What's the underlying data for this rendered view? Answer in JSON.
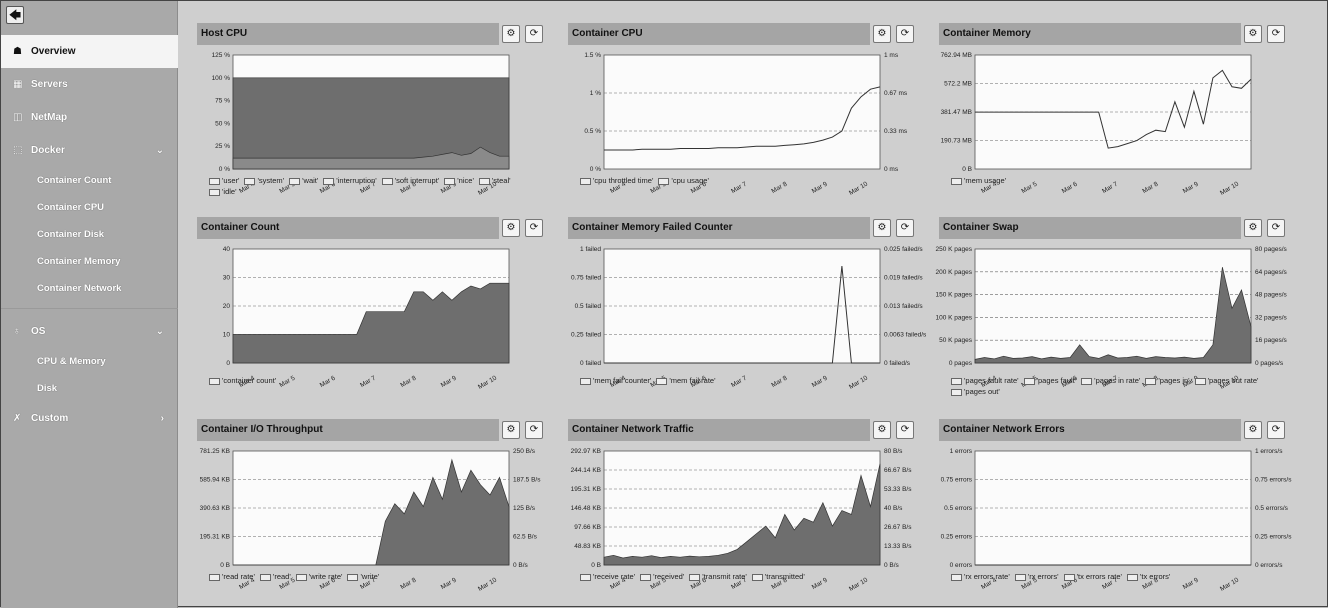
{
  "sidebar": {
    "back_icon": "arrow-left-icon",
    "items": [
      {
        "label": "Overview",
        "icon": "binoculars-icon",
        "glyph": "☗",
        "active": true,
        "chevron": ""
      },
      {
        "label": "Servers",
        "icon": "server-icon",
        "glyph": "▦",
        "active": false,
        "chevron": ""
      },
      {
        "label": "NetMap",
        "icon": "map-icon",
        "glyph": "◫",
        "active": false,
        "chevron": ""
      },
      {
        "label": "Docker",
        "icon": "docker-icon",
        "glyph": "⬚",
        "active": false,
        "chevron": "⌄"
      }
    ],
    "docker_sub": [
      "Container Count",
      "Container CPU",
      "Container Disk",
      "Container Memory",
      "Container Network"
    ],
    "os_item": {
      "label": "OS",
      "icon": "os-icon",
      "glyph": "♁",
      "chevron": "⌄"
    },
    "os_sub": [
      "CPU & Memory",
      "Disk"
    ],
    "custom_item": {
      "label": "Custom",
      "icon": "wrench-icon",
      "glyph": "✗",
      "chevron": "›"
    }
  },
  "panel_buttons": {
    "settings_glyph": "⚙",
    "refresh_glyph": "⟳"
  },
  "panels": [
    {
      "title": "Host CPU",
      "legend": [
        "'user'",
        "'system'",
        "'wait'",
        "'interruption'",
        "'soft interrupt'",
        "'nice'",
        "'steal'",
        "'idle'"
      ]
    },
    {
      "title": "Container CPU",
      "legend": [
        "'cpu throttled time'",
        "'cpu usage'"
      ]
    },
    {
      "title": "Container Memory",
      "legend": [
        "'mem usage'"
      ]
    },
    {
      "title": "Container Count",
      "legend": [
        "'container count'"
      ]
    },
    {
      "title": "Container Memory Failed Counter",
      "legend": [
        "'mem fail counter'",
        "'mem fail rate'"
      ]
    },
    {
      "title": "Container Swap",
      "legend": [
        "'pages fault rate'",
        "'pages fault'",
        "'pages in rate'",
        "'pages in'",
        "'pages out rate'",
        "'pages out'"
      ]
    },
    {
      "title": "Container I/O Throughput",
      "legend": [
        "'read rate'",
        "'read'",
        "'write rate'",
        "'write'"
      ]
    },
    {
      "title": "Container Network Traffic",
      "legend": [
        "'receive rate'",
        "'received'",
        "'transmit rate'",
        "'transmitted'"
      ]
    },
    {
      "title": "Container Network Errors",
      "legend": [
        "'rx errors rate'",
        "'rx errors'",
        "'tx errors rate'",
        "'tx errors'"
      ]
    }
  ],
  "chart_data": [
    {
      "type": "area",
      "x_ticks": [
        "Mar 4",
        "Mar 5",
        "Mar 6",
        "Mar 7",
        "Mar 8",
        "Mar 9",
        "Mar 10"
      ],
      "y_left_ticks": [
        "0 %",
        "25 %",
        "50 %",
        "75 %",
        "100 %",
        "125 %"
      ],
      "y_right_ticks": [],
      "ylim": [
        0,
        125
      ],
      "series": [
        {
          "values": [
            100,
            100,
            100,
            100,
            100,
            100,
            100,
            100,
            100,
            100,
            100,
            100,
            100,
            100,
            100,
            100,
            100,
            100,
            100,
            100,
            100,
            100,
            100,
            100,
            100,
            100,
            100,
            100,
            100,
            100
          ]
        },
        {
          "values": [
            12,
            12,
            12,
            12,
            12,
            12,
            12,
            12,
            12,
            12,
            12,
            12,
            12,
            12,
            12,
            12,
            12,
            12,
            12,
            12,
            13,
            14,
            16,
            18,
            15,
            17,
            24,
            18,
            14,
            14
          ]
        }
      ]
    },
    {
      "type": "line",
      "x_ticks": [
        "Mar 4",
        "Mar 5",
        "Mar 6",
        "Mar 7",
        "Mar 8",
        "Mar 9",
        "Mar 10"
      ],
      "y_left_ticks": [
        "0 %",
        "0.5 %",
        "1 %",
        "1.5 %"
      ],
      "y_right_ticks": [
        "0 ms",
        "0.33 ms",
        "0.67 ms",
        "1 ms"
      ],
      "ylim": [
        0,
        1.5
      ],
      "series": [
        {
          "values": [
            0.25,
            0.25,
            0.25,
            0.25,
            0.26,
            0.26,
            0.26,
            0.26,
            0.27,
            0.27,
            0.27,
            0.27,
            0.28,
            0.28,
            0.28,
            0.29,
            0.3,
            0.3,
            0.3,
            0.31,
            0.32,
            0.33,
            0.35,
            0.38,
            0.42,
            0.5,
            0.8,
            0.95,
            1.05,
            1.08
          ]
        }
      ]
    },
    {
      "type": "line",
      "x_ticks": [
        "Mar 4",
        "Mar 5",
        "Mar 6",
        "Mar 7",
        "Mar 8",
        "Mar 9",
        "Mar 10"
      ],
      "y_left_ticks": [
        "0 B",
        "190.73 MB",
        "381.47 MB",
        "572.2 MB",
        "762.94 MB"
      ],
      "y_right_ticks": [],
      "ylim": [
        0,
        762.94
      ],
      "series": [
        {
          "values": [
            381,
            381,
            381,
            381,
            381,
            381,
            381,
            381,
            381,
            381,
            381,
            381,
            381,
            381,
            140,
            150,
            170,
            190,
            230,
            260,
            250,
            450,
            280,
            520,
            300,
            610,
            660,
            550,
            540,
            600
          ]
        }
      ]
    },
    {
      "type": "area",
      "x_ticks": [
        "Mar 4",
        "Mar 5",
        "Mar 6",
        "Mar 7",
        "Mar 8",
        "Mar 9",
        "Mar 10"
      ],
      "y_left_ticks": [
        "0",
        "10",
        "20",
        "30",
        "40"
      ],
      "y_right_ticks": [],
      "ylim": [
        0,
        40
      ],
      "series": [
        {
          "values": [
            10,
            10,
            10,
            10,
            10,
            10,
            10,
            10,
            10,
            10,
            10,
            10,
            10,
            10,
            18,
            18,
            18,
            18,
            18,
            25,
            25,
            22,
            25,
            22,
            25,
            27,
            26,
            28,
            28,
            28
          ]
        }
      ]
    },
    {
      "type": "line",
      "x_ticks": [
        "Mar 4",
        "Mar 5",
        "Mar 6",
        "Mar 7",
        "Mar 8",
        "Mar 9",
        "Mar 10"
      ],
      "y_left_ticks": [
        "0 failed",
        "0.25 failed",
        "0.5 failed",
        "0.75 failed",
        "1 failed"
      ],
      "y_right_ticks": [
        "0 failed/s",
        "0.0063 failed/s",
        "0.013 failed/s",
        "0.019 failed/s",
        "0.025 failed/s"
      ],
      "ylim": [
        0,
        1
      ],
      "series": [
        {
          "values": [
            0,
            0,
            0,
            0,
            0,
            0,
            0,
            0,
            0,
            0,
            0,
            0,
            0,
            0,
            0,
            0,
            0,
            0,
            0,
            0,
            0,
            0,
            0,
            0,
            0,
            0.85,
            0,
            0,
            0,
            0
          ]
        }
      ]
    },
    {
      "type": "area",
      "x_ticks": [
        "Mar 4",
        "Mar 5",
        "Mar 6",
        "Mar 7",
        "Mar 8",
        "Mar 9",
        "Mar 10"
      ],
      "y_left_ticks": [
        "0 pages",
        "50 K pages",
        "100 K pages",
        "150 K pages",
        "200 K pages",
        "250 K pages"
      ],
      "y_right_ticks": [
        "0 pages/s",
        "16 pages/s",
        "32 pages/s",
        "48 pages/s",
        "64 pages/s",
        "80 pages/s"
      ],
      "ylim": [
        0,
        250000
      ],
      "series": [
        {
          "values": [
            8000,
            12000,
            9000,
            15000,
            10000,
            11000,
            14000,
            9000,
            13000,
            10000,
            12000,
            40000,
            14000,
            10000,
            18000,
            11000,
            12000,
            15000,
            10000,
            14000,
            12000,
            11000,
            13000,
            10000,
            12000,
            40000,
            210000,
            120000,
            160000,
            80000
          ]
        }
      ]
    },
    {
      "type": "area",
      "x_ticks": [
        "Mar 4",
        "Mar 5",
        "Mar 6",
        "Mar 7",
        "Mar 8",
        "Mar 9",
        "Mar 10"
      ],
      "y_left_ticks": [
        "0 B",
        "195.31 KB",
        "390.63 KB",
        "585.94 KB",
        "781.25 KB"
      ],
      "y_right_ticks": [
        "0 B/s",
        "62.5 B/s",
        "125 B/s",
        "187.5 B/s",
        "250 B/s"
      ],
      "ylim": [
        0,
        781.25
      ],
      "series": [
        {
          "values": [
            0,
            0,
            0,
            0,
            0,
            0,
            0,
            0,
            0,
            0,
            0,
            0,
            0,
            0,
            0,
            0,
            300,
            420,
            350,
            500,
            400,
            600,
            450,
            720,
            500,
            650,
            550,
            480,
            600,
            400
          ]
        }
      ]
    },
    {
      "type": "area",
      "x_ticks": [
        "Mar 4",
        "Mar 5",
        "Mar 6",
        "Mar 7",
        "Mar 8",
        "Mar 9",
        "Mar 10"
      ],
      "y_left_ticks": [
        "0 B",
        "48.83 KB",
        "97.66 KB",
        "146.48 KB",
        "195.31 KB",
        "244.14 KB",
        "292.97 KB"
      ],
      "y_right_ticks": [
        "0 B/s",
        "13.33 B/s",
        "26.67 B/s",
        "40 B/s",
        "53.33 B/s",
        "66.67 B/s",
        "80 B/s"
      ],
      "ylim": [
        0,
        292.97
      ],
      "series": [
        {
          "values": [
            20,
            25,
            18,
            22,
            20,
            24,
            19,
            22,
            20,
            23,
            21,
            22,
            25,
            30,
            40,
            60,
            80,
            100,
            70,
            130,
            90,
            120,
            110,
            160,
            100,
            140,
            130,
            230,
            150,
            260
          ]
        }
      ]
    },
    {
      "type": "line",
      "x_ticks": [
        "Mar 4",
        "Mar 5",
        "Mar 6",
        "Mar 7",
        "Mar 8",
        "Mar 9",
        "Mar 10"
      ],
      "y_left_ticks": [
        "0 errors",
        "0.25 errors",
        "0.5 errors",
        "0.75 errors",
        "1 errors"
      ],
      "y_right_ticks": [
        "0 errors/s",
        "0.25 errors/s",
        "0.5 errors/s",
        "0.75 errors/s",
        "1 errors/s"
      ],
      "ylim": [
        0,
        1
      ],
      "series": [
        {
          "values": [
            0,
            0,
            0,
            0,
            0,
            0,
            0,
            0,
            0,
            0,
            0,
            0,
            0,
            0,
            0,
            0,
            0,
            0,
            0,
            0,
            0,
            0,
            0,
            0,
            0,
            0,
            0,
            0,
            0,
            0
          ]
        }
      ]
    }
  ]
}
